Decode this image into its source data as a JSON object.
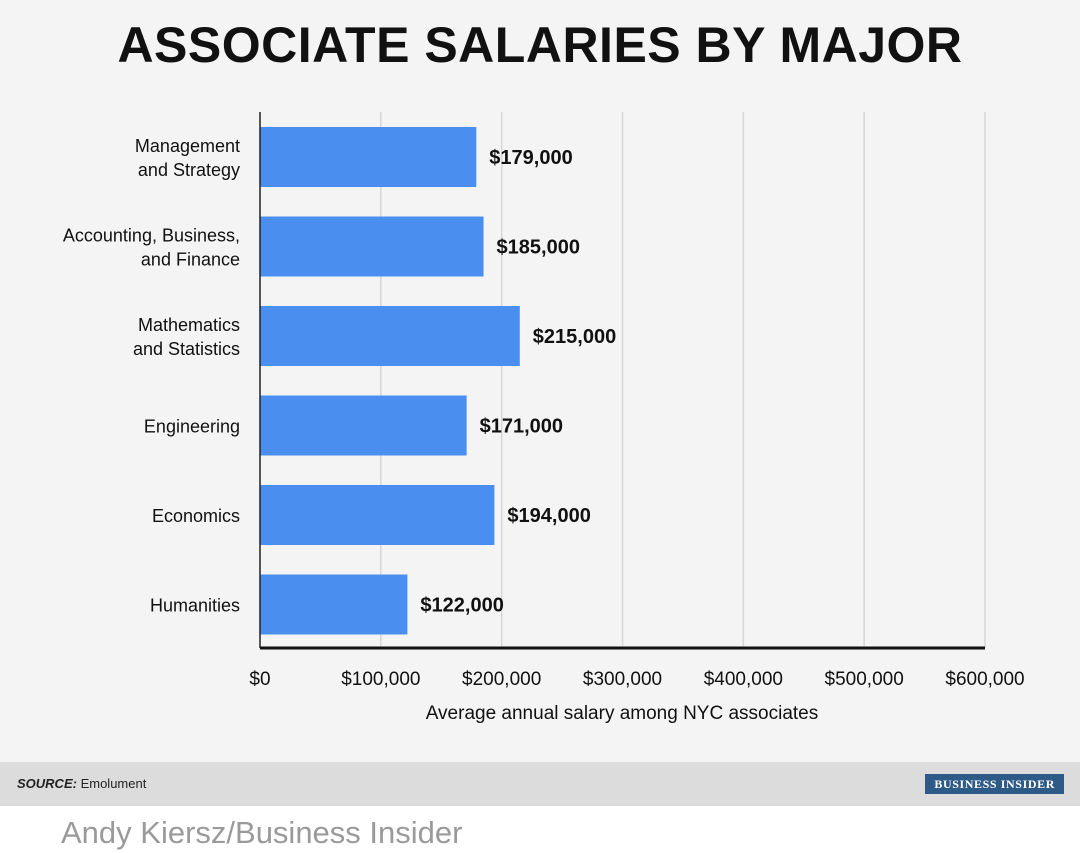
{
  "chart_data": {
    "type": "bar",
    "orientation": "horizontal",
    "title": "ASSOCIATE SALARIES BY MAJOR",
    "xlabel": "Average annual salary among NYC associates",
    "ylabel": "",
    "xlim": [
      0,
      600000
    ],
    "x_ticks": [
      0,
      100000,
      200000,
      300000,
      400000,
      500000,
      600000
    ],
    "x_tick_labels": [
      "$0",
      "$100,000",
      "$200,000",
      "$300,000",
      "$400,000",
      "$500,000",
      "$600,000"
    ],
    "grid": "vertical",
    "categories": [
      [
        "Management",
        "and Strategy"
      ],
      [
        "Accounting, Business,",
        "and Finance"
      ],
      [
        "Mathematics",
        "and Statistics"
      ],
      [
        "Engineering"
      ],
      [
        "Economics"
      ],
      [
        "Humanities"
      ]
    ],
    "values": [
      179000,
      185000,
      215000,
      171000,
      194000,
      122000
    ],
    "data_labels": [
      "$179,000",
      "$185,000",
      "$215,000",
      "$171,000",
      "$194,000",
      "$122,000"
    ],
    "bar_color": "#4a8ff0"
  },
  "footer": {
    "source_label": "SOURCE:",
    "source_text": "Emolument",
    "brand": "BUSINESS INSIDER"
  },
  "credit": "Andy Kiersz/Business Insider"
}
